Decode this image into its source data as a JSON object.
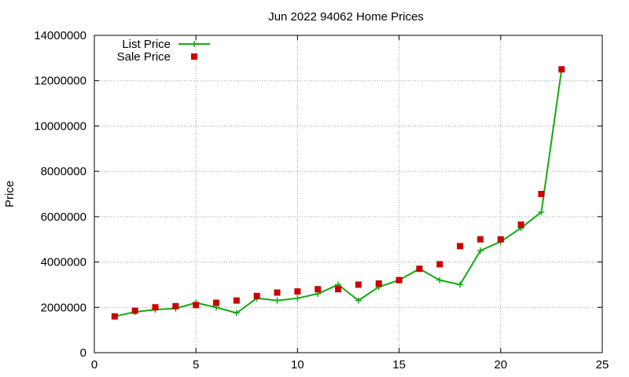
{
  "chart_data": {
    "type": "line",
    "title": "Jun 2022 94062 Home Prices",
    "xlabel": "",
    "ylabel": "Price",
    "xlim": [
      0,
      25
    ],
    "ylim": [
      0,
      14000000
    ],
    "x_ticks": [
      "0",
      "5",
      "10",
      "15",
      "20",
      "25"
    ],
    "y_ticks": [
      "0",
      "2000000",
      "4000000",
      "6000000",
      "8000000",
      "10000000",
      "12000000",
      "14000000"
    ],
    "grid": true,
    "legend_position": "top-left",
    "series": [
      {
        "name": "List Price",
        "style": "line+cross",
        "color": "#11aa11",
        "x": [
          1,
          2,
          3,
          4,
          5,
          6,
          7,
          8,
          9,
          10,
          11,
          12,
          13,
          14,
          15,
          16,
          17,
          18,
          19,
          20,
          21,
          22,
          23
        ],
        "values": [
          1600000,
          1800000,
          1900000,
          1950000,
          2200000,
          2000000,
          1750000,
          2400000,
          2300000,
          2400000,
          2600000,
          3000000,
          2300000,
          2900000,
          3200000,
          3700000,
          3200000,
          3000000,
          4500000,
          4900000,
          5500000,
          6200000,
          12500000
        ]
      },
      {
        "name": "Sale Price",
        "style": "square-marker",
        "color": "#cc0000",
        "x": [
          1,
          2,
          3,
          4,
          5,
          6,
          7,
          8,
          9,
          10,
          11,
          12,
          13,
          14,
          15,
          16,
          17,
          18,
          19,
          20,
          21,
          22,
          23
        ],
        "values": [
          1600000,
          1850000,
          2000000,
          2050000,
          2100000,
          2200000,
          2300000,
          2500000,
          2650000,
          2700000,
          2800000,
          2800000,
          3000000,
          3050000,
          3200000,
          3700000,
          3900000,
          4700000,
          5000000,
          5000000,
          5650000,
          7000000,
          12500000
        ]
      }
    ]
  }
}
